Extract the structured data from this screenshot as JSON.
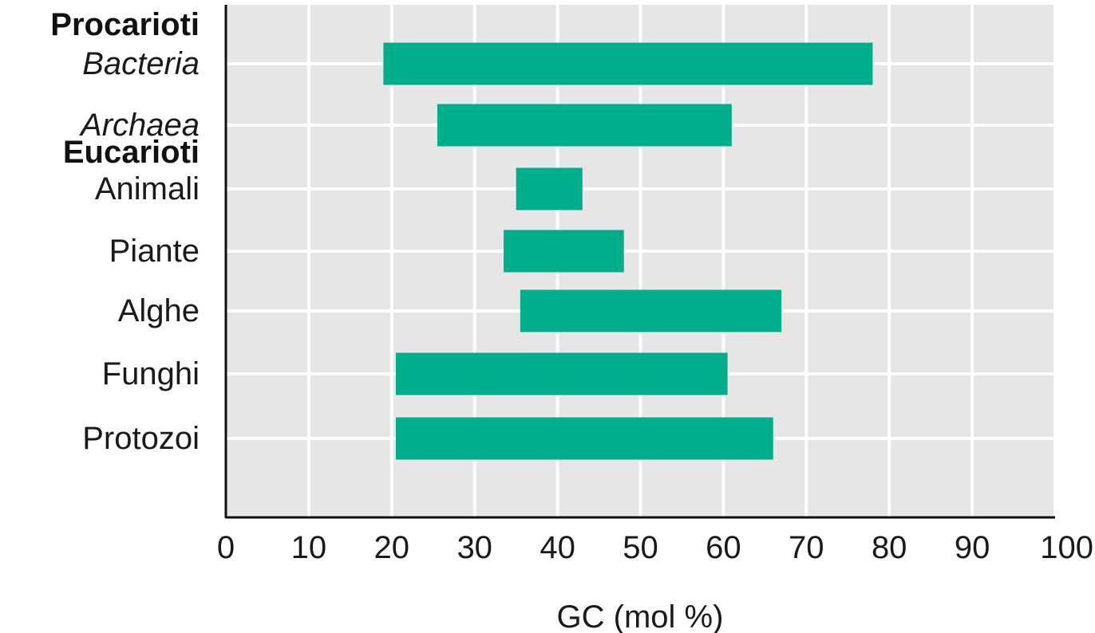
{
  "chart_data": {
    "type": "bar",
    "orientation": "horizontal",
    "range_bars": true,
    "xlabel": "GC (mol %)",
    "xlim": [
      0,
      100
    ],
    "xticks": [
      "0",
      "10",
      "20",
      "30",
      "40",
      "50",
      "60",
      "70",
      "80",
      "90",
      "100"
    ],
    "grid": true,
    "groups": [
      {
        "label": "Procarioti",
        "start_index": 0
      },
      {
        "label": "Eucarioti",
        "start_index": 2
      }
    ],
    "categories": [
      "Bacteria",
      "Archaea",
      "Animali",
      "Piante",
      "Alghe",
      "Funghi",
      "Protozoi"
    ],
    "italic_categories": [
      "Bacteria",
      "Archaea"
    ],
    "ranges": [
      [
        19,
        78
      ],
      [
        25.5,
        61
      ],
      [
        35,
        43
      ],
      [
        33.5,
        48
      ],
      [
        35.5,
        67
      ],
      [
        20.5,
        60.5
      ],
      [
        20.5,
        66
      ]
    ],
    "colors": {
      "bar": "#00ae8c",
      "plot_bg": "#e7e5e6",
      "grid": "#ffffff",
      "axis": "#111111"
    }
  }
}
